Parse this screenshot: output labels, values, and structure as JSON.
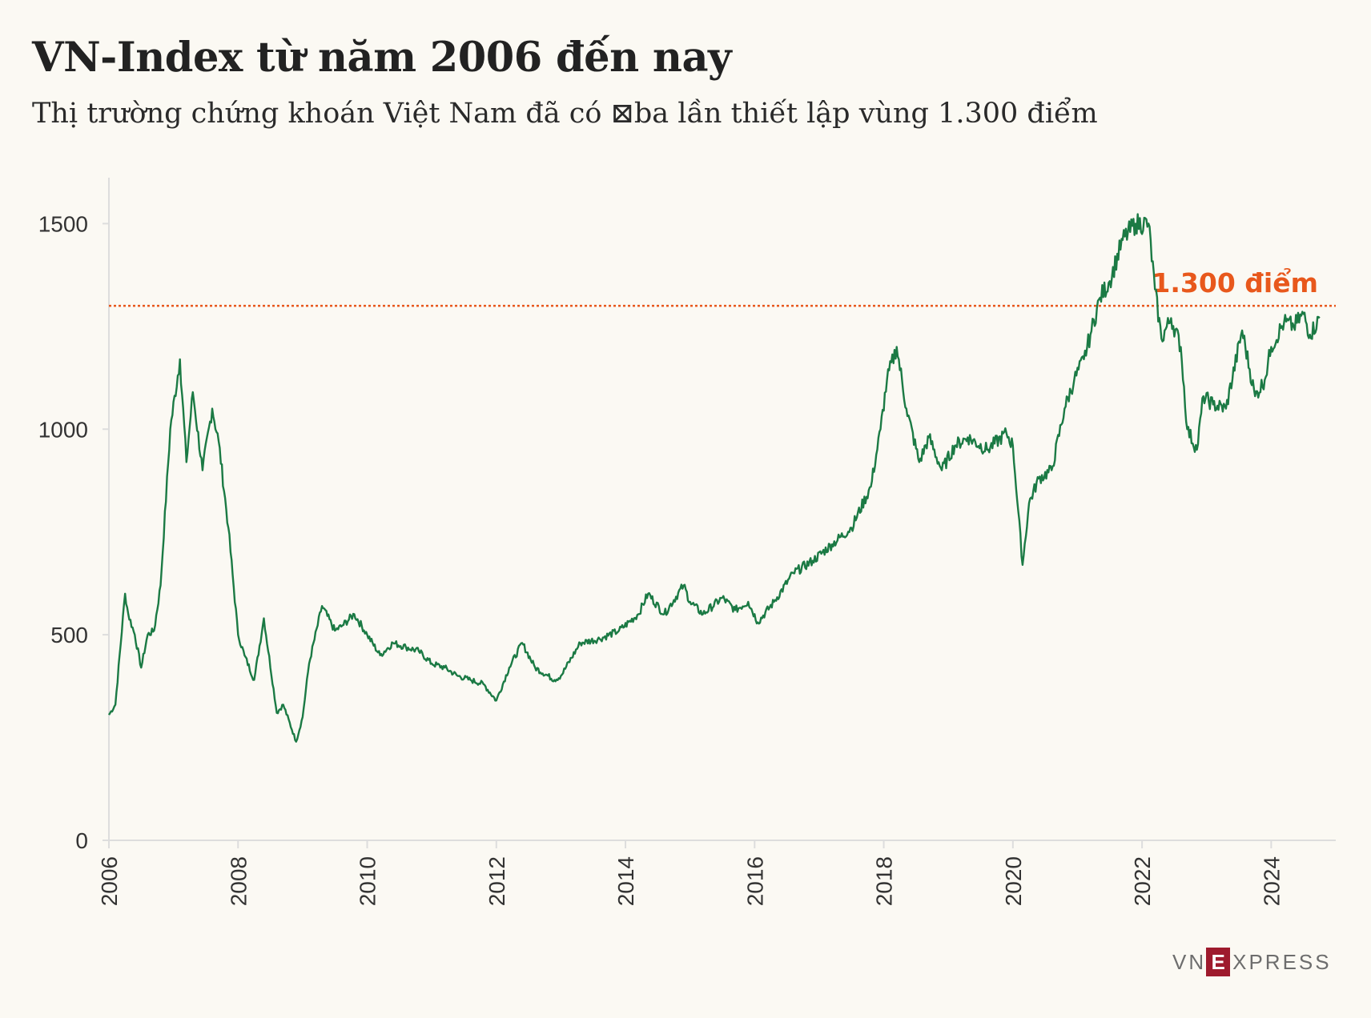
{
  "header": {
    "title": "VN-Index từ năm 2006 đến nay",
    "subtitle": "Thị trường chứng khoán Việt Nam đã có ⊠ba lần thiết lập vùng 1.300 điểm"
  },
  "logo": {
    "prefix": "VN",
    "box": "E",
    "suffix": "XPRESS"
  },
  "colors": {
    "line": "#1b7a44",
    "reference": "#e8581c",
    "axis": "#dddddd",
    "text": "#333333"
  },
  "chart_data": {
    "type": "line",
    "title": "VN-Index từ năm 2006 đến nay",
    "xlabel": "",
    "ylabel": "",
    "xlim": [
      2006,
      2025
    ],
    "ylim": [
      0,
      1600
    ],
    "yticks": [
      0,
      500,
      1000,
      1500
    ],
    "xticks": [
      "2006",
      "2008",
      "2010",
      "2012",
      "2014",
      "2016",
      "2018",
      "2020",
      "2022",
      "2024"
    ],
    "reference_line": {
      "value": 1300,
      "label": "1.300 điểm"
    },
    "series": [
      {
        "name": "VN-Index",
        "x": [
          2006.0,
          2006.1,
          2006.25,
          2006.3,
          2006.4,
          2006.5,
          2006.6,
          2006.7,
          2006.8,
          2006.95,
          2007.1,
          2007.2,
          2007.3,
          2007.45,
          2007.6,
          2007.7,
          2007.85,
          2008.0,
          2008.1,
          2008.25,
          2008.4,
          2008.6,
          2008.7,
          2008.9,
          2009.0,
          2009.1,
          2009.3,
          2009.5,
          2009.6,
          2009.8,
          2010.0,
          2010.2,
          2010.4,
          2010.6,
          2010.8,
          2011.0,
          2011.2,
          2011.4,
          2011.6,
          2011.8,
          2012.0,
          2012.2,
          2012.4,
          2012.6,
          2012.9,
          2013.0,
          2013.3,
          2013.6,
          2013.9,
          2014.2,
          2014.35,
          2014.6,
          2014.9,
          2015.0,
          2015.2,
          2015.5,
          2015.7,
          2015.9,
          2016.05,
          2016.3,
          2016.6,
          2016.9,
          2017.2,
          2017.5,
          2017.8,
          2017.95,
          2018.05,
          2018.2,
          2018.35,
          2018.55,
          2018.7,
          2018.9,
          2019.1,
          2019.3,
          2019.6,
          2019.9,
          2020.0,
          2020.15,
          2020.25,
          2020.4,
          2020.6,
          2020.8,
          2020.95,
          2021.1,
          2021.2,
          2021.35,
          2021.5,
          2021.7,
          2021.9,
          2022.1,
          2022.2,
          2022.3,
          2022.45,
          2022.6,
          2022.7,
          2022.85,
          2022.95,
          2023.1,
          2023.3,
          2023.55,
          2023.75,
          2023.9,
          2024.0,
          2024.2,
          2024.35,
          2024.5,
          2024.6,
          2024.75
        ],
        "values": [
          305,
          330,
          600,
          550,
          500,
          420,
          500,
          510,
          620,
          1000,
          1170,
          920,
          1090,
          900,
          1050,
          970,
          760,
          500,
          450,
          390,
          540,
          310,
          330,
          240,
          300,
          430,
          570,
          510,
          520,
          550,
          500,
          450,
          480,
          470,
          460,
          430,
          420,
          400,
          390,
          380,
          340,
          420,
          480,
          420,
          390,
          400,
          480,
          490,
          510,
          550,
          600,
          550,
          620,
          580,
          550,
          590,
          560,
          580,
          530,
          580,
          650,
          680,
          720,
          760,
          860,
          1000,
          1120,
          1200,
          1050,
          920,
          980,
          900,
          960,
          980,
          950,
          990,
          960,
          670,
          820,
          880,
          900,
          1050,
          1120,
          1170,
          1230,
          1320,
          1360,
          1460,
          1500,
          1500,
          1340,
          1220,
          1270,
          1200,
          1000,
          950,
          1080,
          1060,
          1050,
          1240,
          1080,
          1120,
          1200,
          1260,
          1250,
          1280,
          1230,
          1270
        ]
      }
    ]
  }
}
